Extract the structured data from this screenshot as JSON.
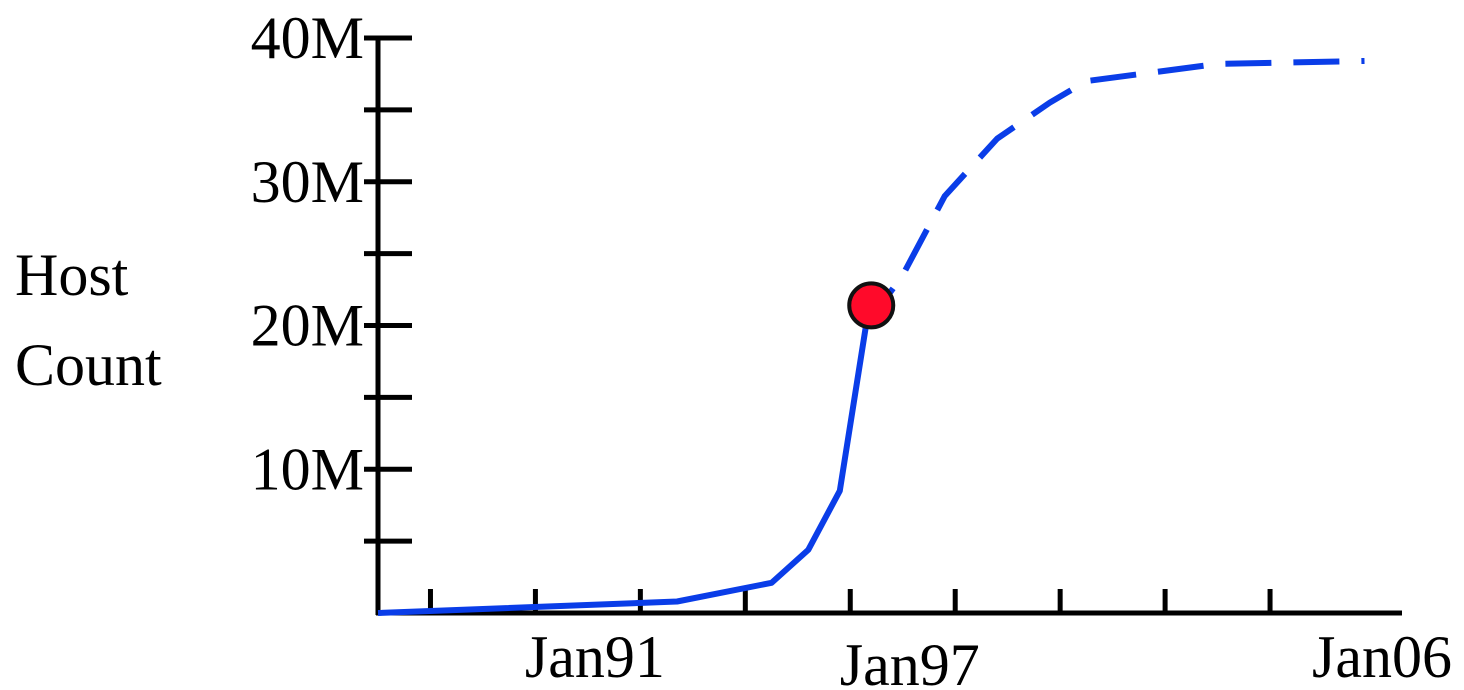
{
  "chart_data": {
    "type": "line",
    "ylabel_lines": [
      "Host",
      "Count"
    ],
    "y_tick_labels": [
      {
        "value": 10,
        "label": "10M"
      },
      {
        "value": 20,
        "label": "20M"
      },
      {
        "value": 30,
        "label": "30M"
      },
      {
        "value": 40,
        "label": "40M"
      }
    ],
    "x_tick_labels": [
      {
        "value": 1991,
        "label": "Jan91"
      },
      {
        "value": 1997,
        "label": "Jan97"
      },
      {
        "value": 2006,
        "label": "Jan06"
      }
    ],
    "xlim": [
      1987,
      2006
    ],
    "ylim": [
      0,
      40
    ],
    "x_ticks": [
      1988,
      1990,
      1992,
      1994,
      1996,
      1998,
      2000,
      2002,
      2004
    ],
    "y_ticks": [
      5,
      10,
      15,
      20,
      25,
      30,
      35,
      40
    ],
    "series": [
      {
        "style": "solid",
        "color": "#0a3de8",
        "x": [
          1987.0,
          1992.7,
          1994.5,
          1995.2,
          1995.8,
          1996.3
        ],
        "y": [
          0.0,
          0.8,
          2.1,
          4.4,
          8.5,
          20.0
        ]
      },
      {
        "style": "dashed",
        "color": "#0a3de8",
        "x": [
          1996.3,
          1997.0,
          1997.8,
          1998.8,
          1999.8,
          2000.5,
          2003.0,
          2005.8
        ],
        "y": [
          20.0,
          23.5,
          29.0,
          33.0,
          35.5,
          37.0,
          38.2,
          38.4
        ]
      }
    ],
    "highlight_point": {
      "x": 1996.4,
      "y": 21.4,
      "color": "#ff0a2a"
    }
  }
}
